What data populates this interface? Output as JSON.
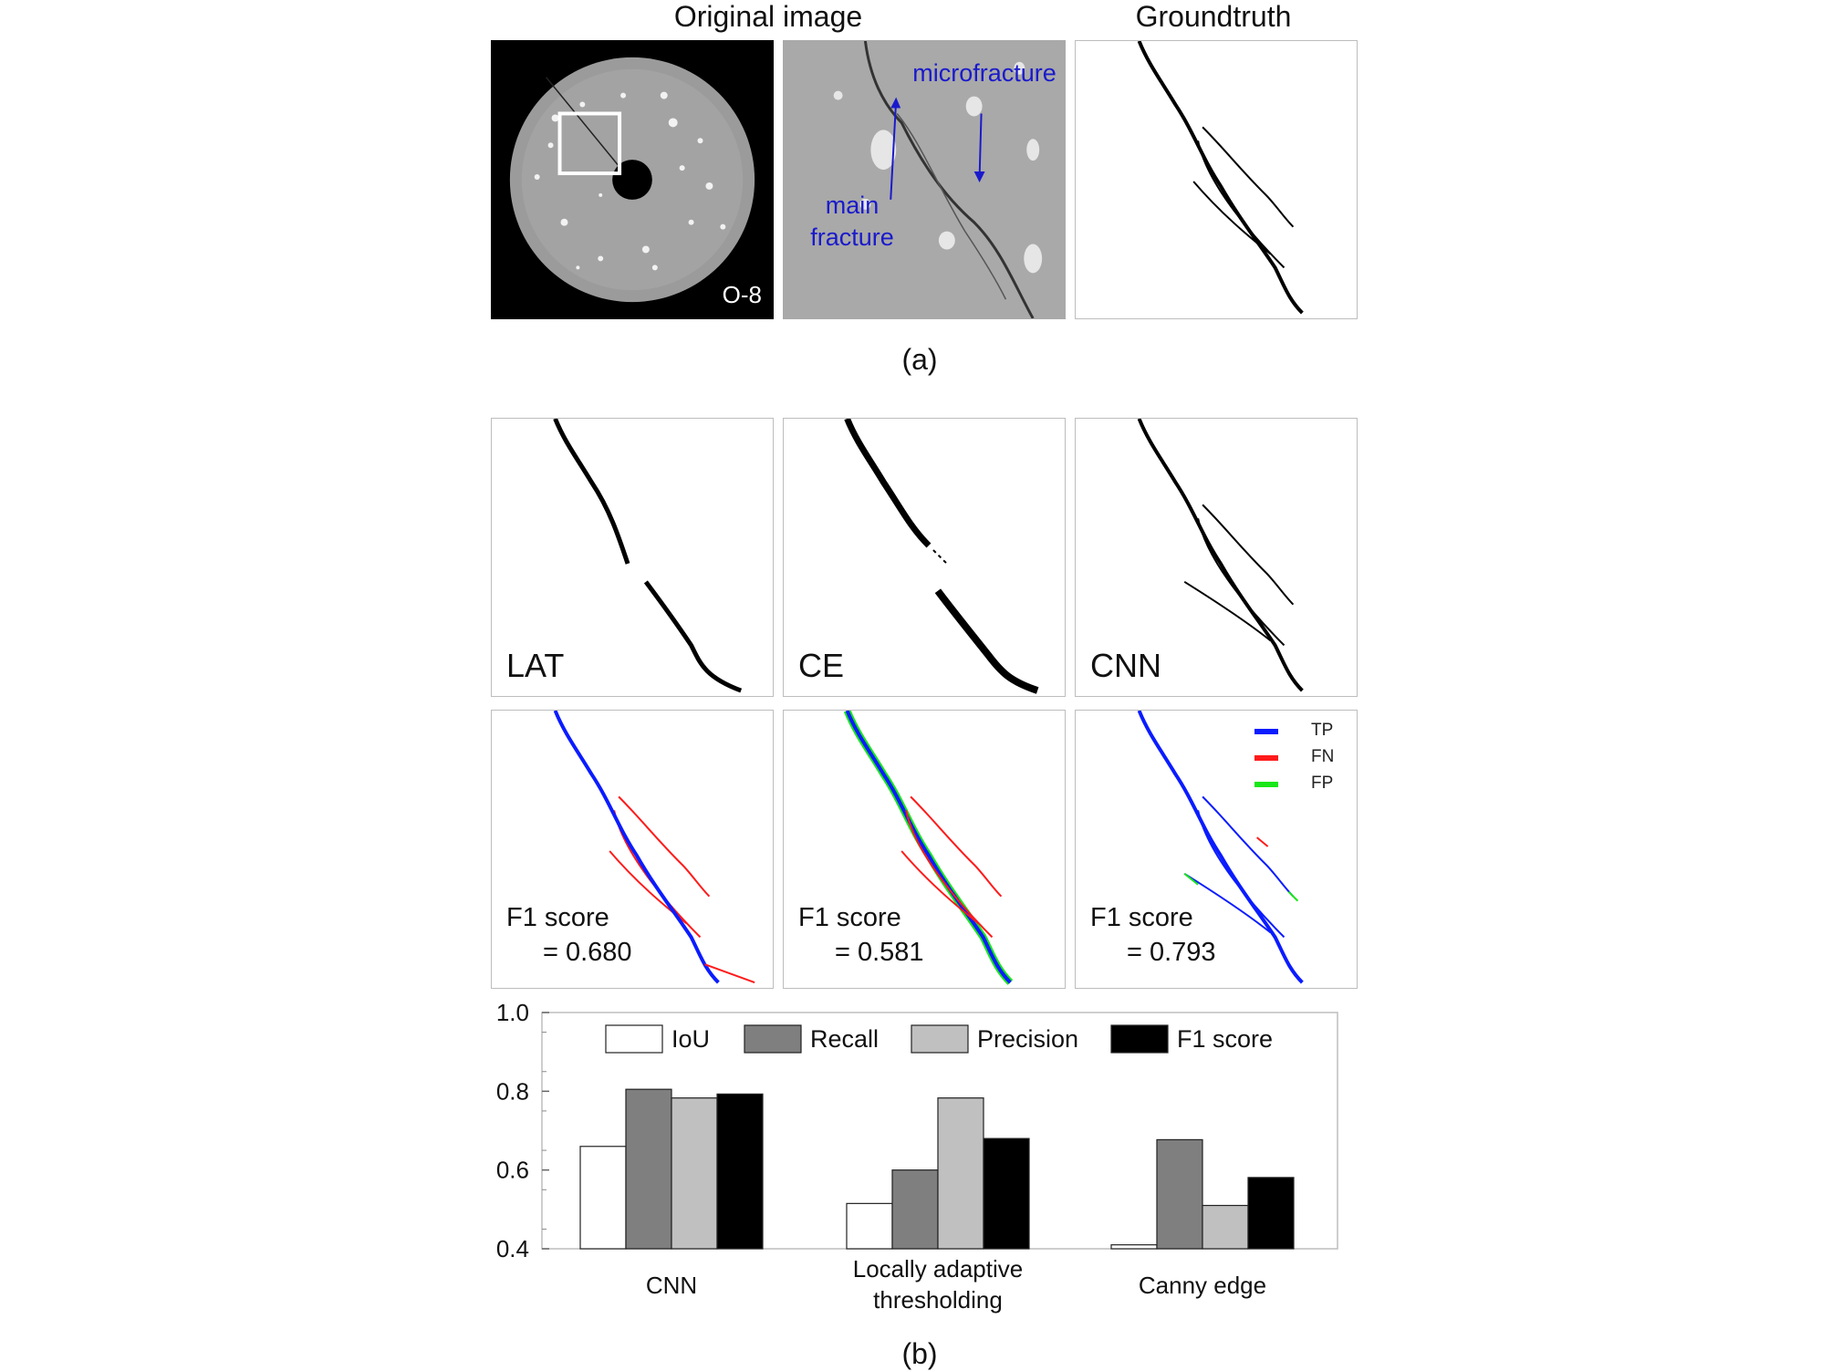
{
  "panel_a": {
    "col_titles": [
      "Original image",
      "Groundtruth"
    ],
    "sample_label": "O-8",
    "annotations": {
      "microfracture": "microfracture",
      "main_fracture_line1": "main",
      "main_fracture_line2": "fracture"
    },
    "label": "(a)"
  },
  "panel_b": {
    "method_labels": [
      "LAT",
      "CE",
      "CNN"
    ],
    "legend": [
      {
        "label": "TP",
        "color": "#0a1cff"
      },
      {
        "label": "FN",
        "color": "#ff1a1a"
      },
      {
        "label": "FP",
        "color": "#19e619"
      }
    ],
    "f1_text": "F1 score",
    "f1_values": [
      "= 0.680",
      "= 0.581",
      "= 0.793"
    ],
    "label": "(b)"
  },
  "chart_data": {
    "type": "bar",
    "categories": [
      "CNN",
      "Locally adaptive thresholding",
      "Canny edge"
    ],
    "series": [
      {
        "name": "IoU",
        "color": "#ffffff",
        "values": [
          0.66,
          0.515,
          0.41
        ]
      },
      {
        "name": "Recall",
        "color": "#7f7f7f",
        "values": [
          0.805,
          0.6,
          0.677
        ]
      },
      {
        "name": "Precision",
        "color": "#c0c0c0",
        "values": [
          0.783,
          0.783,
          0.51
        ]
      },
      {
        "name": "F1 score",
        "color": "#000000",
        "values": [
          0.793,
          0.68,
          0.581
        ]
      }
    ],
    "ylim": [
      0.4,
      1.0
    ],
    "yticks": [
      "0.4",
      "0.6",
      "0.8",
      "1.0"
    ],
    "legend_position": "top",
    "grid": false
  }
}
